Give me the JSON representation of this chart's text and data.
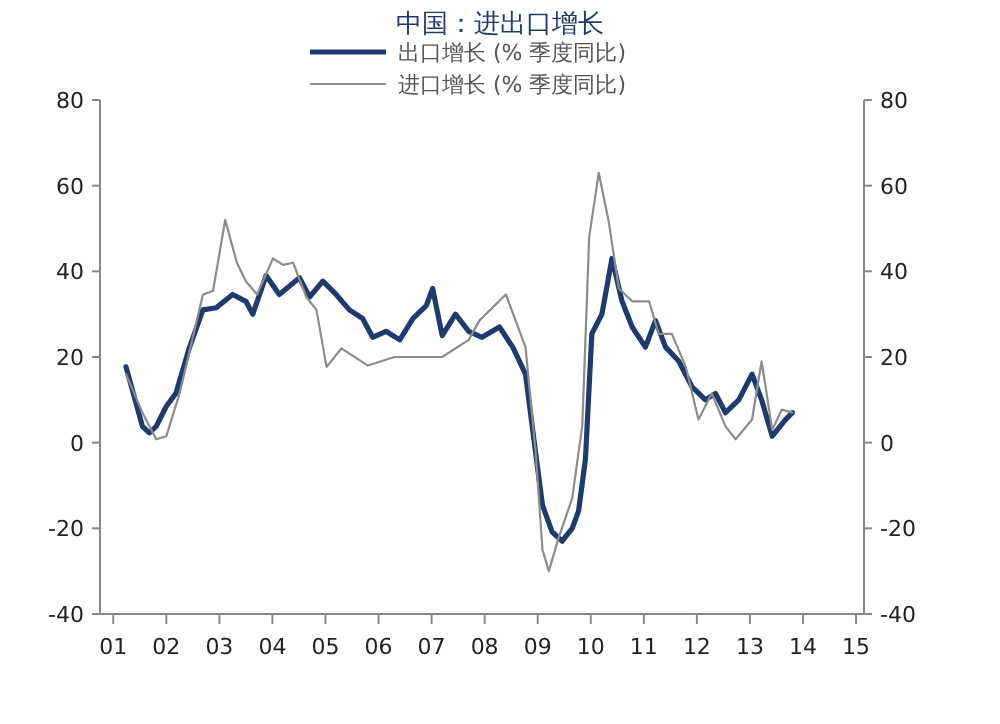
{
  "chart_data": {
    "type": "line",
    "title": "中国：进出口增长",
    "xlim": [
      2000.75,
      2015.15
    ],
    "xticks": [
      {
        "value": 2001,
        "label": "01"
      },
      {
        "value": 2002,
        "label": "02"
      },
      {
        "value": 2003,
        "label": "03"
      },
      {
        "value": 2004,
        "label": "04"
      },
      {
        "value": 2005,
        "label": "05"
      },
      {
        "value": 2006,
        "label": "06"
      },
      {
        "value": 2007,
        "label": "07"
      },
      {
        "value": 2008,
        "label": "08"
      },
      {
        "value": 2009,
        "label": "09"
      },
      {
        "value": 2010,
        "label": "10"
      },
      {
        "value": 2011,
        "label": "11"
      },
      {
        "value": 2012,
        "label": "12"
      },
      {
        "value": 2013,
        "label": "13"
      },
      {
        "value": 2014,
        "label": "14"
      },
      {
        "value": 2015,
        "label": "15"
      }
    ],
    "ylim": [
      -40,
      80
    ],
    "yticks": [
      -40,
      -20,
      0,
      20,
      40,
      60,
      80
    ],
    "y2lim": [
      -40,
      80
    ],
    "y2ticks": [
      -40,
      -20,
      0,
      20,
      40,
      60,
      80
    ],
    "legend": "top",
    "grid": false,
    "line_style": "solid",
    "marker": "none",
    "series": [
      {
        "name": "出口增长 (% 季度同比)",
        "color": "#1f3a6e",
        "x": [
          2001.24,
          2001.55,
          2001.68,
          2001.81,
          2002.0,
          2002.18,
          2002.43,
          2002.69,
          2002.94,
          2003.25,
          2003.5,
          2003.63,
          2003.88,
          2004.13,
          2004.51,
          2004.7,
          2004.95,
          2005.2,
          2005.45,
          2005.7,
          2005.89,
          2006.14,
          2006.4,
          2006.65,
          2006.9,
          2007.02,
          2007.2,
          2007.45,
          2007.7,
          2007.95,
          2008.28,
          2008.53,
          2008.77,
          2008.96,
          2009.09,
          2009.27,
          2009.46,
          2009.65,
          2009.77,
          2009.9,
          2010.02,
          2010.21,
          2010.4,
          2010.59,
          2010.78,
          2011.03,
          2011.22,
          2011.41,
          2011.66,
          2011.91,
          2012.16,
          2012.35,
          2012.54,
          2012.79,
          2013.04,
          2013.22,
          2013.42,
          2013.67,
          2013.8
        ],
        "values": [
          17.7,
          3.8,
          2.3,
          3.8,
          8.5,
          11.5,
          22,
          31,
          31.5,
          34.6,
          33,
          30,
          39,
          34.6,
          38.5,
          34,
          37.7,
          34.6,
          31,
          29,
          24.6,
          26,
          24,
          29,
          32,
          36,
          25,
          30,
          26,
          24.6,
          27,
          22.3,
          16,
          -2.3,
          -14.6,
          -20.8,
          -23,
          -20,
          -16,
          -3.8,
          25.4,
          30,
          43,
          33,
          27,
          22.3,
          28.5,
          22.3,
          19,
          13,
          10,
          11.5,
          7,
          10,
          16,
          10,
          1.5,
          5.4,
          7
        ]
      },
      {
        "name": "进口增长 (% 季度同比)",
        "color": "#8c8c8c",
        "x": [
          2001.24,
          2001.55,
          2001.81,
          2002.0,
          2002.25,
          2002.69,
          2002.88,
          2003.11,
          2003.33,
          2003.5,
          2003.71,
          2004.01,
          2004.2,
          2004.39,
          2004.64,
          2004.83,
          2005.02,
          2005.3,
          2005.8,
          2006.3,
          2006.8,
          2007.2,
          2007.7,
          2007.9,
          2008.4,
          2008.77,
          2008.96,
          2009.09,
          2009.21,
          2009.4,
          2009.65,
          2009.84,
          2009.97,
          2010.15,
          2010.34,
          2010.53,
          2010.78,
          2011.1,
          2011.28,
          2011.53,
          2011.79,
          2012.03,
          2012.28,
          2012.54,
          2012.73,
          2013.04,
          2013.22,
          2013.42,
          2013.6,
          2013.8
        ],
        "values": [
          16,
          7,
          0.8,
          1.5,
          11.5,
          34.6,
          35.4,
          52,
          42,
          37.7,
          34.6,
          43,
          41.5,
          42,
          34,
          31,
          17.7,
          22,
          18,
          20,
          20,
          20,
          24,
          28.5,
          34.6,
          22.3,
          -2,
          -25,
          -30,
          -22,
          -13,
          4,
          48,
          63,
          51.5,
          36,
          33,
          33,
          25.4,
          25.4,
          17.7,
          5.4,
          11.5,
          3.8,
          0.8,
          5.4,
          19,
          3,
          7.7,
          7
        ]
      }
    ]
  }
}
